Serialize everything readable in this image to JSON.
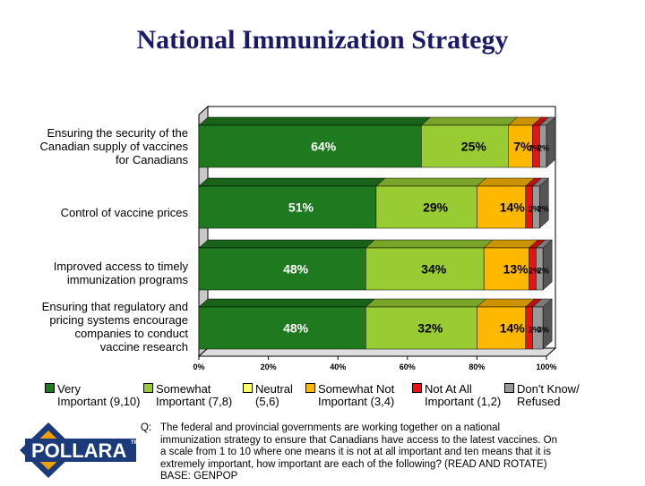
{
  "title": "National Immunization Strategy",
  "chart_data": {
    "type": "bar",
    "orientation": "horizontal",
    "stacked": true,
    "percent_stacked": true,
    "title": "National Immunization Strategy",
    "categories": [
      "Ensuring the security of the Canadian supply of vaccines for Canadians",
      "Control of vaccine prices",
      "Improved access to timely immunization programs",
      "Ensuring that regulatory and pricing systems encourage companies to conduct vaccine research"
    ],
    "category_lines": [
      [
        "Ensuring the security of the",
        "Canadian supply of vaccines",
        "for Canadians"
      ],
      [
        "Control of vaccine prices"
      ],
      [
        "Improved access to timely",
        "immunization programs"
      ],
      [
        "Ensuring that regulatory and",
        "pricing systems encourage",
        "companies to conduct",
        "vaccine research"
      ]
    ],
    "series": [
      {
        "name": "Very Important (9,10)",
        "legend_lines": [
          "Very",
          "Important (9,10)"
        ],
        "color": "#1f7a1f",
        "values": [
          64,
          51,
          48,
          48
        ],
        "labels": [
          "64%",
          "51%",
          "48%",
          "48%"
        ]
      },
      {
        "name": "Somewhat Important (7,8)",
        "legend_lines": [
          "Somewhat",
          "Important (7,8)"
        ],
        "color": "#99cc33",
        "values": [
          25,
          29,
          34,
          32
        ],
        "labels": [
          "25%",
          "29%",
          "34%",
          "32%"
        ]
      },
      {
        "name": "Neutral (5,6)",
        "legend_lines": [
          "Neutral",
          "(5,6)"
        ],
        "color": "#ffff66",
        "values": [
          0,
          0,
          0,
          0
        ],
        "labels": [
          "",
          "",
          "",
          ""
        ]
      },
      {
        "name": "Somewhat Not Important (3,4)",
        "legend_lines": [
          "Somewhat Not",
          "Important (3,4)"
        ],
        "color": "#ffb800",
        "values": [
          7,
          14,
          13,
          14
        ],
        "labels": [
          "7%",
          "14%",
          "13%",
          "14%"
        ]
      },
      {
        "name": "Not At All Important (1,2)",
        "legend_lines": [
          "Not At All",
          "Important (1,2)"
        ],
        "color": "#ee1111",
        "values": [
          2,
          2,
          2,
          2
        ],
        "labels": [
          "2%",
          "2%",
          "2%",
          "2%"
        ]
      },
      {
        "name": "Don't Know/ Refused",
        "legend_lines": [
          "Don't Know/",
          "Refused"
        ],
        "color": "#999999",
        "values": [
          2,
          2,
          2,
          3
        ],
        "labels": [
          "2%",
          "2%",
          "2%",
          "3%"
        ]
      }
    ],
    "xlim": [
      0,
      100
    ],
    "x_ticks": [
      0,
      20,
      40,
      60,
      80,
      100
    ],
    "x_tick_labels": [
      "0%",
      "20%",
      "40%",
      "60%",
      "80%",
      "100%"
    ],
    "legend_position": "bottom",
    "grid": false,
    "style": "3d"
  },
  "question": {
    "prefix": "Q:",
    "text": "The federal and provincial governments are working together on a national immunization strategy to ensure that Canadians have access to the latest vaccines. On a scale from 1 to 10 where one means it is not at all important and ten means that it is extremely important, how important are each of the following? (READ AND ROTATE) BASE: GENPOP"
  },
  "logo": {
    "text": "POLLARA",
    "mark": "TM"
  },
  "colors": {
    "title": "#1a1a66",
    "logo_bg": "#1a3a7a",
    "logo_accent": "#f2a000"
  }
}
